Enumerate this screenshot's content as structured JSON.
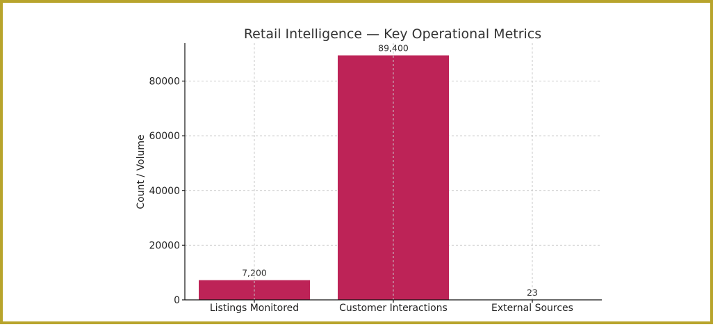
{
  "chart_data": {
    "type": "bar",
    "title": "Retail Intelligence — Key Operational Metrics",
    "xlabel": "",
    "ylabel": "Count / Volume",
    "categories": [
      "Listings Monitored",
      "Customer Interactions",
      "External Sources"
    ],
    "values": [
      7200,
      89400,
      23
    ],
    "data_labels": [
      "7,200",
      "89,400",
      "23"
    ],
    "ylim": [
      0,
      93870
    ],
    "yticks": [
      0,
      20000,
      40000,
      60000,
      80000
    ],
    "ytick_labels": [
      "0",
      "20000",
      "40000",
      "60000",
      "80000"
    ],
    "grid": true,
    "bar_color": "#bd2357",
    "frame_color": "#b8a42c"
  }
}
